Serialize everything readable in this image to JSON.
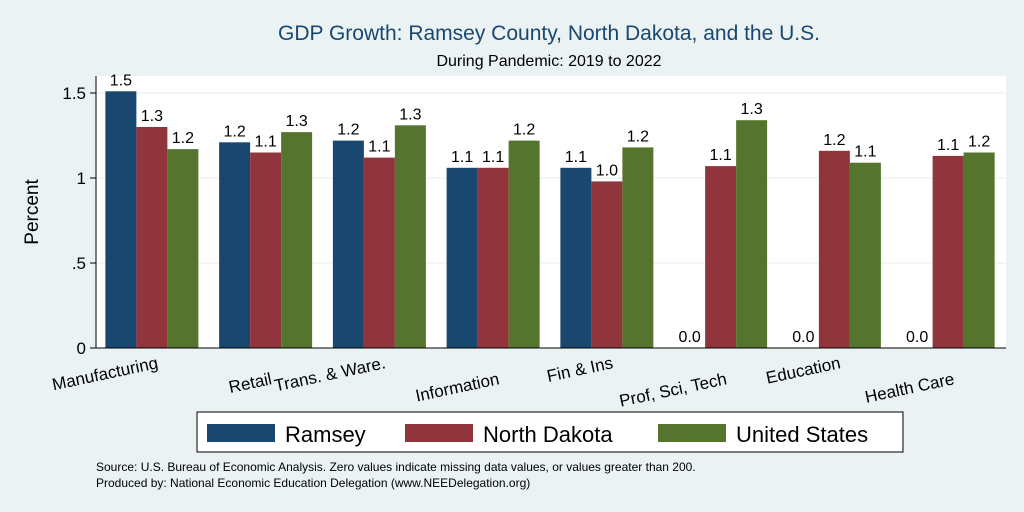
{
  "chart_data": {
    "type": "bar",
    "title": "GDP Growth: Ramsey County, North Dakota, and the U.S.",
    "subtitle": "During Pandemic: 2019 to 2022",
    "ylabel": "Percent",
    "ylim": [
      0,
      1.6
    ],
    "yticks": [
      0,
      0.5,
      1,
      1.5
    ],
    "ytick_labels": [
      "0",
      ".5",
      "1",
      "1.5"
    ],
    "categories": [
      "Manufacturing",
      "Retail",
      "Trans. & Ware.",
      "Information",
      "Fin & Ins",
      "Prof, Sci, Tech",
      "Education",
      "Health Care"
    ],
    "series": [
      {
        "name": "Ramsey",
        "color": "#1a476f",
        "values": [
          1.51,
          1.21,
          1.22,
          1.06,
          1.06,
          0.0,
          0.0,
          0.0
        ],
        "labels": [
          "1.5",
          "1.2",
          "1.2",
          "1.1",
          "1.1",
          "0.0",
          "0.0",
          "0.0"
        ]
      },
      {
        "name": "North Dakota",
        "color": "#90353b",
        "values": [
          1.3,
          1.15,
          1.12,
          1.06,
          0.98,
          1.07,
          1.16,
          1.13
        ],
        "labels": [
          "1.3",
          "1.1",
          "1.1",
          "1.1",
          "1.0",
          "1.1",
          "1.2",
          "1.1"
        ]
      },
      {
        "name": "United States",
        "color": "#55752f",
        "values": [
          1.17,
          1.27,
          1.31,
          1.22,
          1.18,
          1.34,
          1.09,
          1.15
        ],
        "labels": [
          "1.2",
          "1.3",
          "1.3",
          "1.2",
          "1.2",
          "1.3",
          "1.1",
          "1.2"
        ]
      }
    ],
    "grid": true,
    "legend": "bottom",
    "source_lines": [
      "Source: U.S. Bureau of Economic Analysis. Zero values indicate missing data values, or values greater than 200.",
      "Produced by: National Economic Education Delegation (www.NEEDelegation.org)"
    ]
  }
}
